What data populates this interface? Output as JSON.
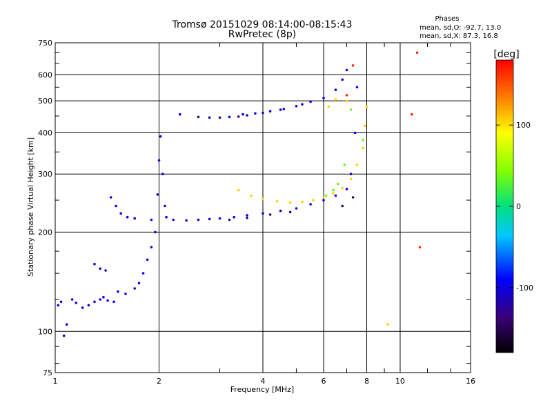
{
  "chart_data": {
    "type": "scatter",
    "title": "Tromsø 20151029 08:14:00-08:15:43",
    "subtitle": "RwPretec (8p)",
    "xlabel": "Frequency [MHz]",
    "ylabel": "Stationary phase Virtual Height [km]",
    "xscale": "log",
    "yscale": "log",
    "xlim": [
      1,
      16
    ],
    "ylim": [
      75,
      750
    ],
    "x_ticks": [
      1,
      2,
      4,
      6,
      8,
      10,
      16
    ],
    "y_ticks": [
      75,
      100,
      200,
      300,
      400,
      500,
      600,
      750
    ],
    "grid": true,
    "phase_info": {
      "heading": "Phases",
      "line1": "mean, sd,O: -92.7, 13.0",
      "line2": "mean, sd,X:  87.3, 16.8"
    },
    "colorbar": {
      "label": "[deg]",
      "colormap": "rainbow",
      "range": [
        -180,
        180
      ],
      "ticks": [
        100,
        0,
        -100
      ]
    },
    "series": [
      {
        "color_value": -100,
        "points": [
          [
            1.02,
            120
          ],
          [
            1.04,
            123
          ],
          [
            1.06,
            97
          ],
          [
            1.08,
            105
          ],
          [
            1.12,
            125
          ],
          [
            1.15,
            122
          ],
          [
            1.2,
            118
          ],
          [
            1.25,
            120
          ],
          [
            1.3,
            123
          ],
          [
            1.35,
            125
          ],
          [
            1.38,
            127
          ],
          [
            1.42,
            124
          ],
          [
            1.48,
            123
          ],
          [
            1.52,
            132
          ],
          [
            1.6,
            130
          ],
          [
            1.7,
            135
          ],
          [
            1.75,
            140
          ],
          [
            1.8,
            150
          ],
          [
            1.85,
            165
          ],
          [
            1.9,
            180
          ],
          [
            1.95,
            200
          ],
          [
            1.98,
            260
          ],
          [
            2.0,
            330
          ],
          [
            2.02,
            390
          ],
          [
            2.05,
            300
          ],
          [
            2.08,
            240
          ],
          [
            2.1,
            222
          ],
          [
            2.2,
            218
          ],
          [
            2.4,
            217
          ],
          [
            2.6,
            218
          ],
          [
            2.8,
            219
          ],
          [
            3.0,
            220
          ],
          [
            3.3,
            222
          ],
          [
            3.6,
            225
          ],
          [
            4.0,
            228
          ],
          [
            4.5,
            232
          ],
          [
            5.0,
            236
          ],
          [
            5.5,
            243
          ],
          [
            6.0,
            250
          ],
          [
            6.5,
            258
          ],
          [
            7.0,
            270
          ],
          [
            7.2,
            300
          ],
          [
            7.4,
            400
          ],
          [
            7.5,
            550
          ],
          [
            1.45,
            255
          ],
          [
            1.5,
            240
          ],
          [
            1.55,
            228
          ],
          [
            1.62,
            222
          ],
          [
            1.7,
            220
          ],
          [
            1.9,
            218
          ],
          [
            2.3,
            455
          ],
          [
            2.8,
            445
          ],
          [
            3.2,
            447
          ],
          [
            3.6,
            452
          ],
          [
            4.0,
            460
          ],
          [
            4.5,
            470
          ],
          [
            5.0,
            482
          ],
          [
            5.5,
            497
          ],
          [
            6.0,
            510
          ],
          [
            6.5,
            540
          ],
          [
            6.8,
            580
          ],
          [
            7.0,
            620
          ],
          [
            3.5,
            455
          ],
          [
            3.8,
            458
          ],
          [
            4.2,
            465
          ],
          [
            4.6,
            472
          ],
          [
            5.2,
            488
          ],
          [
            1.3,
            160
          ],
          [
            1.35,
            155
          ],
          [
            1.4,
            153
          ]
        ]
      },
      {
        "color_value": -140,
        "points": [
          [
            3.2,
            218
          ],
          [
            3.6,
            221
          ],
          [
            4.2,
            226
          ],
          [
            4.8,
            230
          ],
          [
            2.6,
            447
          ],
          [
            3.0,
            445
          ],
          [
            3.4,
            448
          ],
          [
            6.8,
            240
          ],
          [
            7.3,
            255
          ]
        ]
      },
      {
        "color_value": 105,
        "points": [
          [
            3.4,
            268
          ],
          [
            3.7,
            258
          ],
          [
            4.0,
            252
          ],
          [
            4.4,
            248
          ],
          [
            4.8,
            246
          ],
          [
            5.2,
            247
          ],
          [
            5.6,
            250
          ],
          [
            6.0,
            255
          ],
          [
            6.4,
            262
          ],
          [
            6.8,
            272
          ],
          [
            7.2,
            290
          ],
          [
            7.5,
            320
          ],
          [
            7.8,
            360
          ],
          [
            7.9,
            420
          ],
          [
            8.0,
            480
          ],
          [
            7.0,
            500
          ],
          [
            6.5,
            505
          ],
          [
            6.2,
            480
          ],
          [
            9.2,
            105
          ]
        ]
      },
      {
        "color_value": 35,
        "points": [
          [
            6.1,
            258
          ],
          [
            6.4,
            268
          ],
          [
            6.6,
            280
          ],
          [
            6.9,
            320
          ],
          [
            7.2,
            470
          ],
          [
            7.8,
            380
          ]
        ]
      },
      {
        "color_value": 165,
        "points": [
          [
            7.0,
            520
          ],
          [
            7.3,
            640
          ],
          [
            11.2,
            700
          ],
          [
            10.8,
            455
          ],
          [
            11.4,
            180
          ]
        ]
      }
    ]
  }
}
